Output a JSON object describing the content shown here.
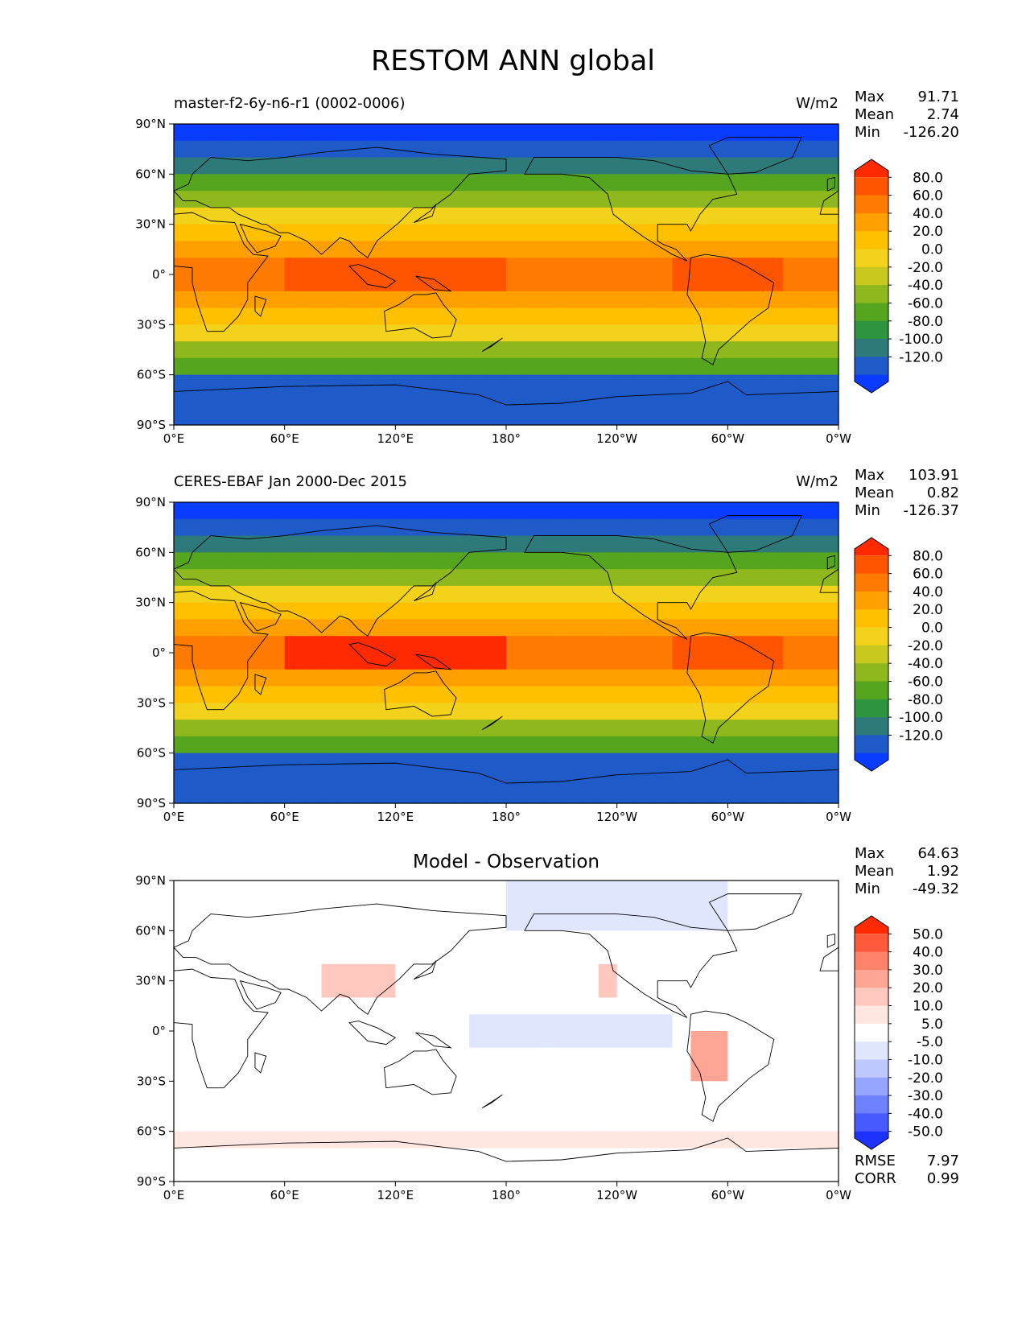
{
  "title": "RESTOM ANN global",
  "lat_ticks": [
    "90°N",
    "60°N",
    "30°N",
    "0°",
    "30°S",
    "60°S",
    "90°S"
  ],
  "lon_ticks": [
    "0°E",
    "60°E",
    "120°E",
    "180°",
    "120°W",
    "60°W",
    "0°W"
  ],
  "panels": [
    {
      "id": "model",
      "left_title": "master-f2-6y-n6-r1 (0002-0006)",
      "right_title": "W/m2",
      "center_title": "",
      "stats": [
        {
          "k": "Max",
          "v": "91.71"
        },
        {
          "k": "Mean",
          "v": "2.74"
        },
        {
          "k": "Min",
          "v": "-126.20"
        }
      ],
      "colorbar_labels": [
        "80.0",
        "60.0",
        "40.0",
        "20.0",
        "0.0",
        "-20.0",
        "-40.0",
        "-60.0",
        "-80.0",
        "-100.0",
        "-120.0"
      ],
      "colormap": "rainbow",
      "extra_stats": []
    },
    {
      "id": "obs",
      "left_title": "CERES-EBAF Jan 2000-Dec 2015",
      "right_title": "W/m2",
      "center_title": "",
      "stats": [
        {
          "k": "Max",
          "v": "103.91"
        },
        {
          "k": "Mean",
          "v": "0.82"
        },
        {
          "k": "Min",
          "v": "-126.37"
        }
      ],
      "colorbar_labels": [
        "80.0",
        "60.0",
        "40.0",
        "20.0",
        "0.0",
        "-20.0",
        "-40.0",
        "-60.0",
        "-80.0",
        "-100.0",
        "-120.0"
      ],
      "colormap": "rainbow",
      "extra_stats": []
    },
    {
      "id": "diff",
      "left_title": "",
      "right_title": "",
      "center_title": "Model - Observation",
      "stats": [
        {
          "k": "Max",
          "v": "64.63"
        },
        {
          "k": "Mean",
          "v": "1.92"
        },
        {
          "k": "Min",
          "v": "-49.32"
        }
      ],
      "colorbar_labels": [
        "50.0",
        "40.0",
        "30.0",
        "20.0",
        "10.0",
        "5.0",
        "-5.0",
        "-10.0",
        "-20.0",
        "-30.0",
        "-40.0",
        "-50.0"
      ],
      "colormap": "diverging",
      "extra_stats": [
        {
          "k": "RMSE",
          "v": "7.97"
        },
        {
          "k": "CORR",
          "v": "0.99"
        }
      ]
    }
  ],
  "colors": {
    "rainbow": [
      "#ff2a00",
      "#ff5500",
      "#ff7a00",
      "#ffa000",
      "#ffc000",
      "#f2d21a",
      "#c8c81e",
      "#8fb81e",
      "#55a51e",
      "#2e9440",
      "#2e7a7a",
      "#1e5ac8",
      "#0a3cff"
    ],
    "diverging": [
      "#ff2a00",
      "#ff5a3c",
      "#ff8269",
      "#ffa596",
      "#ffc8be",
      "#ffe6e1",
      "#ffffff",
      "#e1e6ff",
      "#bec8ff",
      "#96a5ff",
      "#6e82ff",
      "#465aff",
      "#1e32ff"
    ]
  }
}
